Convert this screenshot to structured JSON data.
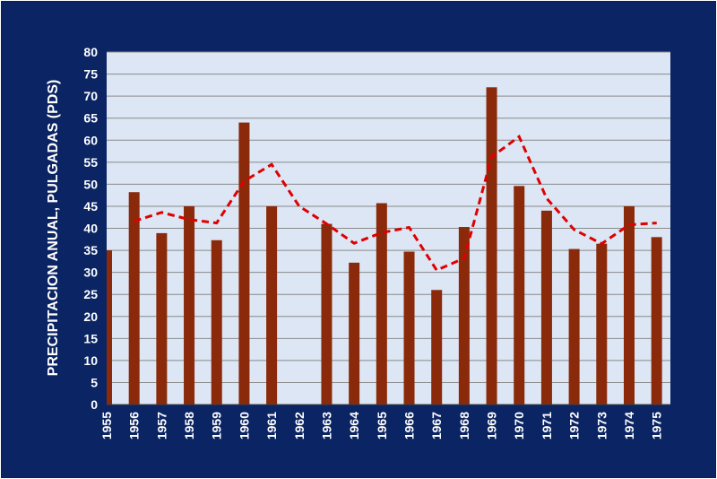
{
  "chart_data": {
    "type": "bar",
    "title": "",
    "xlabel": "",
    "ylabel": "PRECIPITACION ANUAL, PULGADAS (PDS)",
    "ylim": [
      0,
      80
    ],
    "yticks": [
      0,
      5,
      10,
      15,
      20,
      25,
      30,
      35,
      40,
      45,
      50,
      55,
      60,
      65,
      70,
      75,
      80
    ],
    "grid": true,
    "legend": "none",
    "categories": [
      "1955",
      "1956",
      "1957",
      "1958",
      "1959",
      "1960",
      "1961",
      "1962",
      "1963",
      "1964",
      "1965",
      "1966",
      "1967",
      "1968",
      "1969",
      "1970",
      "1971",
      "1972",
      "1973",
      "1974",
      "1975"
    ],
    "series": [
      {
        "kind": "bar",
        "color": "#8b2a0a",
        "values": [
          35.0,
          48.2,
          38.9,
          45.0,
          37.3,
          64.0,
          45.0,
          null,
          41.0,
          32.2,
          45.7,
          34.7,
          26.0,
          40.3,
          72.0,
          49.6,
          44.0,
          35.3,
          36.5,
          45.0,
          38.0
        ]
      },
      {
        "kind": "line",
        "style": "dashed",
        "color": "#e00000",
        "values": [
          null,
          41.6,
          43.6,
          42.0,
          41.2,
          50.7,
          54.5,
          45.0,
          41.0,
          36.6,
          39.0,
          40.2,
          30.5,
          33.2,
          56.2,
          60.8,
          46.8,
          39.7,
          36.5,
          40.8,
          41.2
        ]
      }
    ]
  },
  "colors": {
    "background": "#0b2463",
    "plot_area": "#dce6f5",
    "gridline": "#8a8a8a"
  }
}
